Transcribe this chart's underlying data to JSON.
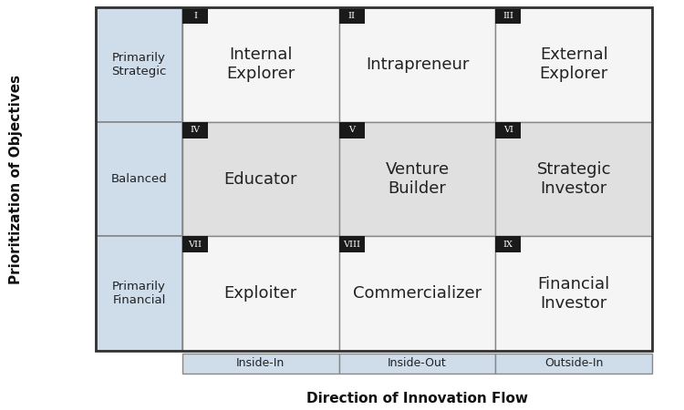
{
  "title_x": "Direction of Innovation Flow",
  "title_y": "Prioritization of Objectives",
  "col_labels": [
    "Inside-In",
    "Inside-Out",
    "Outside-In"
  ],
  "row_labels": [
    "Primarily\nStrategic",
    "Balanced",
    "Primarily\nFinancial"
  ],
  "cell_labels": [
    [
      "I",
      "II",
      "III"
    ],
    [
      "IV",
      "V",
      "VI"
    ],
    [
      "VII",
      "VIII",
      "IX"
    ]
  ],
  "cell_names": [
    [
      "Internal\nExplorer",
      "Intrapreneur",
      "External\nExplorer"
    ],
    [
      "Educator",
      "Venture\nBuilder",
      "Strategic\nInvestor"
    ],
    [
      "Exploiter",
      "Commercializer",
      "Financial\nInvestor"
    ]
  ],
  "row_bg": "#cfdce9",
  "cell_bg_white": "#f5f5f5",
  "cell_bg_gray": "#e0e0e0",
  "label_bg": "#1a1a1a",
  "label_color": "#ffffff",
  "col_header_bg": "#cfdce9",
  "col_header_text": "#222222",
  "axis_label_color": "#111111",
  "cell_border_color": "#888888",
  "outer_border_color": "#333333",
  "figsize": [
    7.5,
    4.5
  ],
  "dpi": 100
}
